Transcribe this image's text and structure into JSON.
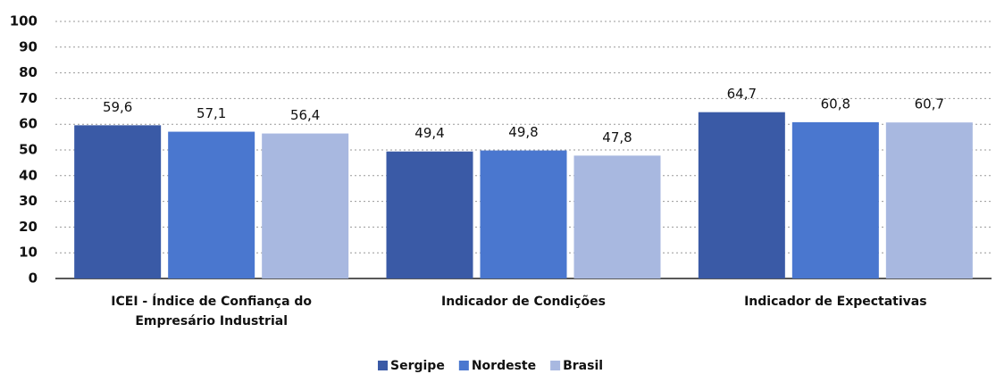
{
  "chart_data": {
    "type": "bar",
    "categories": [
      "ICEI - Índice de Confiança do Empresário Industrial",
      "Indicador de Condições",
      "Indicador de Expectativas"
    ],
    "series": [
      {
        "name": "Sergipe",
        "color": "#3a5aa6",
        "values": [
          59.6,
          49.4,
          64.7
        ],
        "value_labels": [
          "59,6",
          "49,4",
          "64,7"
        ]
      },
      {
        "name": "Nordeste",
        "color": "#4a77cf",
        "values": [
          57.1,
          49.8,
          60.8
        ],
        "value_labels": [
          "57,1",
          "49,8",
          "60,8"
        ]
      },
      {
        "name": "Brasil",
        "color": "#a8b8e0",
        "values": [
          56.4,
          47.8,
          60.7
        ],
        "value_labels": [
          "56,4",
          "47,8",
          "60,7"
        ]
      }
    ],
    "ylim": [
      0,
      100
    ],
    "yticks": [
      0,
      10,
      20,
      30,
      40,
      50,
      60,
      70,
      80,
      90,
      100
    ],
    "grid": true,
    "legend": "bottom"
  }
}
